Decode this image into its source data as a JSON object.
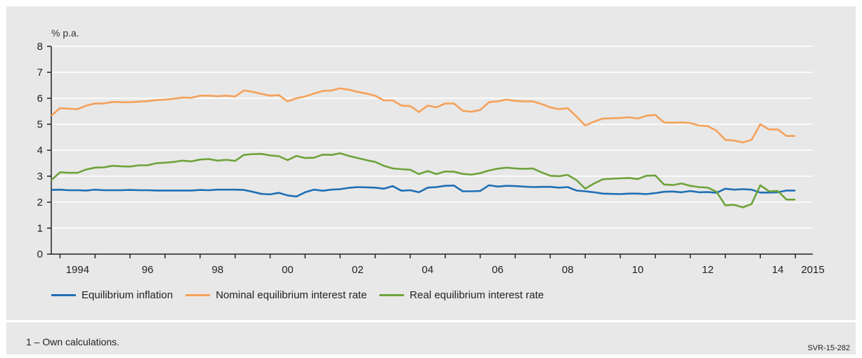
{
  "chart_data": {
    "type": "line",
    "unit_label": "% p.a.",
    "ylim": [
      0,
      8
    ],
    "yticks": [
      0,
      1,
      2,
      3,
      4,
      5,
      6,
      7,
      8
    ],
    "grid": "horizontal",
    "legend_position": "bottom",
    "x_range": [
      1993.75,
      2015.5
    ],
    "x_tick_labels": [
      "1994",
      "96",
      "98",
      "00",
      "02",
      "04",
      "06",
      "08",
      "10",
      "12",
      "14",
      "2015"
    ],
    "x": [
      1993.75,
      1994,
      1994.25,
      1994.5,
      1994.75,
      1995,
      1995.25,
      1995.5,
      1995.75,
      1996,
      1996.25,
      1996.5,
      1996.75,
      1997,
      1997.25,
      1997.5,
      1997.75,
      1998,
      1998.25,
      1998.5,
      1998.75,
      1999,
      1999.25,
      1999.5,
      1999.75,
      2000,
      2000.25,
      2000.5,
      2000.75,
      2001,
      2001.25,
      2001.5,
      2001.75,
      2002,
      2002.25,
      2002.5,
      2002.75,
      2003,
      2003.25,
      2003.5,
      2003.75,
      2004,
      2004.25,
      2004.5,
      2004.75,
      2005,
      2005.25,
      2005.5,
      2005.75,
      2006,
      2006.25,
      2006.5,
      2006.75,
      2007,
      2007.25,
      2007.5,
      2007.75,
      2008,
      2008.25,
      2008.5,
      2008.75,
      2009,
      2009.25,
      2009.5,
      2009.75,
      2010,
      2010.25,
      2010.5,
      2010.75,
      2011,
      2011.25,
      2011.5,
      2011.75,
      2012,
      2012.25,
      2012.5,
      2012.75,
      2013,
      2013.25,
      2013.5,
      2013.75,
      2014,
      2014.25,
      2014.5,
      2014.75,
      2015
    ],
    "series": [
      {
        "name": "Equilibrium inflation",
        "color": "#1f6fb5",
        "values": [
          2.47,
          2.48,
          2.46,
          2.46,
          2.45,
          2.48,
          2.46,
          2.46,
          2.46,
          2.47,
          2.46,
          2.46,
          2.45,
          2.45,
          2.45,
          2.45,
          2.45,
          2.47,
          2.46,
          2.48,
          2.48,
          2.48,
          2.47,
          2.4,
          2.32,
          2.3,
          2.36,
          2.26,
          2.22,
          2.38,
          2.48,
          2.44,
          2.48,
          2.5,
          2.55,
          2.58,
          2.57,
          2.56,
          2.52,
          2.62,
          2.44,
          2.46,
          2.38,
          2.56,
          2.58,
          2.63,
          2.64,
          2.42,
          2.42,
          2.43,
          2.65,
          2.6,
          2.63,
          2.62,
          2.6,
          2.58,
          2.59,
          2.59,
          2.56,
          2.58,
          2.45,
          2.42,
          2.38,
          2.33,
          2.32,
          2.31,
          2.33,
          2.33,
          2.31,
          2.35,
          2.4,
          2.41,
          2.38,
          2.43,
          2.38,
          2.39,
          2.36,
          2.52,
          2.48,
          2.5,
          2.48,
          2.37,
          2.37,
          2.38,
          2.45,
          2.45
        ]
      },
      {
        "name": "Nominal equilibrium interest rate",
        "color": "#f5a15a",
        "values": [
          5.33,
          5.62,
          5.6,
          5.58,
          5.72,
          5.8,
          5.8,
          5.86,
          5.85,
          5.85,
          5.87,
          5.89,
          5.93,
          5.95,
          5.98,
          6.03,
          6.02,
          6.1,
          6.1,
          6.08,
          6.1,
          6.07,
          6.3,
          6.25,
          6.17,
          6.1,
          6.12,
          5.88,
          6.0,
          6.07,
          6.18,
          6.28,
          6.3,
          6.38,
          6.33,
          6.25,
          6.18,
          6.1,
          5.92,
          5.92,
          5.72,
          5.7,
          5.47,
          5.72,
          5.65,
          5.8,
          5.8,
          5.52,
          5.48,
          5.55,
          5.85,
          5.88,
          5.95,
          5.9,
          5.88,
          5.88,
          5.78,
          5.65,
          5.58,
          5.62,
          5.3,
          4.95,
          5.1,
          5.22,
          5.23,
          5.24,
          5.27,
          5.22,
          5.33,
          5.36,
          5.07,
          5.06,
          5.07,
          5.05,
          4.95,
          4.93,
          4.75,
          4.4,
          4.37,
          4.3,
          4.4,
          5.0,
          4.8,
          4.8,
          4.55,
          4.55
        ]
      },
      {
        "name": "Real equilibrium interest rate",
        "color": "#6ea33a",
        "values": [
          2.85,
          3.15,
          3.13,
          3.13,
          3.26,
          3.33,
          3.34,
          3.4,
          3.38,
          3.37,
          3.42,
          3.42,
          3.5,
          3.52,
          3.55,
          3.6,
          3.57,
          3.64,
          3.66,
          3.6,
          3.63,
          3.59,
          3.82,
          3.85,
          3.86,
          3.8,
          3.77,
          3.62,
          3.78,
          3.7,
          3.71,
          3.83,
          3.82,
          3.88,
          3.78,
          3.7,
          3.62,
          3.55,
          3.4,
          3.3,
          3.27,
          3.25,
          3.08,
          3.2,
          3.08,
          3.18,
          3.17,
          3.09,
          3.06,
          3.12,
          3.22,
          3.29,
          3.33,
          3.3,
          3.28,
          3.3,
          3.15,
          3.02,
          3.0,
          3.05,
          2.85,
          2.52,
          2.72,
          2.88,
          2.9,
          2.92,
          2.93,
          2.89,
          3.02,
          3.03,
          2.68,
          2.66,
          2.72,
          2.63,
          2.58,
          2.56,
          2.4,
          1.88,
          1.9,
          1.8,
          1.93,
          2.65,
          2.42,
          2.43,
          2.1,
          2.1
        ]
      }
    ]
  },
  "footnote": "1 – Own calculations.",
  "source_code": "SVR-15-282"
}
